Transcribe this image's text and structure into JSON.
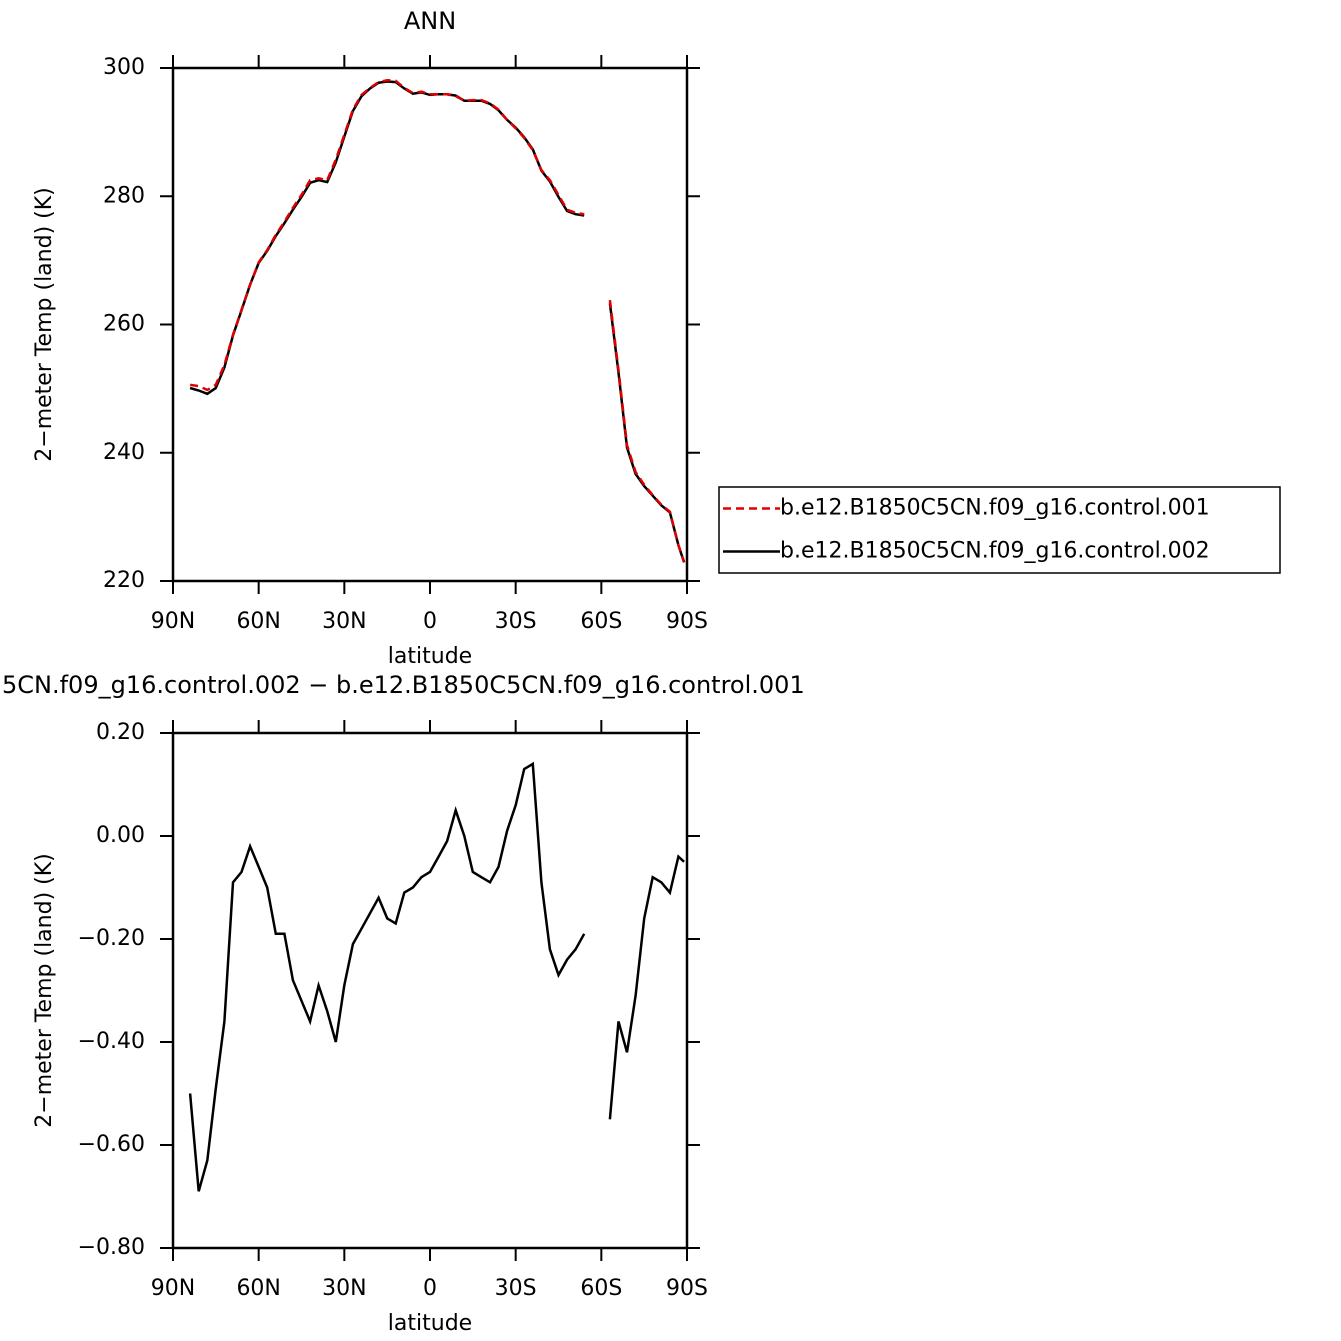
{
  "chart_data": [
    {
      "type": "line",
      "title": "ANN",
      "xlabel": "latitude",
      "ylabel": "2−meter Temp (land) (K)",
      "xlim": [
        90,
        -90
      ],
      "xticks": [
        {
          "value": 90,
          "label": "90N"
        },
        {
          "value": 60,
          "label": "60N"
        },
        {
          "value": 30,
          "label": "30N"
        },
        0,
        {
          "value": -30,
          "label": "30S"
        },
        {
          "value": -60,
          "label": "60S"
        },
        {
          "value": -90,
          "label": "90S"
        }
      ],
      "ylim": [
        220,
        300
      ],
      "yticks": [
        220,
        240,
        260,
        280,
        300
      ],
      "legend": "right",
      "x": [
        84,
        81,
        78,
        75,
        72,
        69,
        66,
        63,
        60,
        57,
        54,
        51,
        48,
        45,
        42,
        39,
        36,
        33,
        30,
        27,
        24,
        21,
        18,
        15,
        12,
        9,
        6,
        3,
        0,
        -3,
        -6,
        -9,
        -12,
        -15,
        -18,
        -21,
        -24,
        -27,
        -30,
        -33,
        -36,
        -39,
        -42,
        -45,
        -48,
        -51,
        -54,
        -57,
        -60,
        -63,
        -66,
        -69,
        -72,
        -75,
        -78,
        -81,
        -84,
        -87,
        -89
      ],
      "series": [
        {
          "name": "b.e12.B1850C5CN.f09_g16.control.001",
          "color": "#e00000",
          "linestyle": "dashed",
          "values": [
            250.6,
            250.4,
            249.8,
            250.6,
            253.7,
            258.4,
            262.3,
            266.2,
            269.7,
            271.6,
            274,
            276,
            278.2,
            280.2,
            282.5,
            282.8,
            282.5,
            285.7,
            289.6,
            293.5,
            295.8,
            296.9,
            297.8,
            298.1,
            298,
            296.9,
            296.1,
            296.3,
            295.9,
            295.9,
            295.9,
            295.6,
            294.9,
            295,
            295,
            294.5,
            293.5,
            291.9,
            290.6,
            289.1,
            287.2,
            284.1,
            282.5,
            280.2,
            277.9,
            277.4,
            277.2,
            null,
            null,
            263.8,
            252.9,
            241.2,
            237,
            235,
            233.4,
            231.9,
            230.8,
            225.6,
            223
          ]
        },
        {
          "name": "b.e12.B1850C5CN.f09_g16.control.002",
          "color": "#000000",
          "linestyle": "solid",
          "values": [
            250.1,
            249.7,
            249.2,
            250.1,
            253.3,
            258.3,
            262.2,
            266.2,
            269.6,
            271.5,
            273.8,
            275.8,
            277.9,
            279.9,
            282.1,
            282.5,
            282.2,
            285.3,
            289.3,
            293.3,
            295.6,
            296.8,
            297.7,
            297.9,
            297.8,
            296.8,
            296,
            296.2,
            295.8,
            295.9,
            295.9,
            295.7,
            294.9,
            294.9,
            294.9,
            294.4,
            293.4,
            291.9,
            290.7,
            289.2,
            287.3,
            284,
            282.3,
            279.9,
            277.7,
            277.2,
            277,
            null,
            null,
            263.3,
            252.5,
            240.8,
            236.7,
            234.8,
            233.3,
            231.8,
            230.7,
            225.6,
            222.9
          ]
        }
      ]
    },
    {
      "type": "line",
      "title": "5CN.f09_g16.control.002 − b.e12.B1850C5CN.f09_g16.control.001",
      "xlabel": "latitude",
      "ylabel": "2−meter Temp (land) (K)",
      "xlim": [
        90,
        -90
      ],
      "xticks": [
        {
          "value": 90,
          "label": "90N"
        },
        {
          "value": 60,
          "label": "60N"
        },
        {
          "value": 30,
          "label": "30N"
        },
        0,
        {
          "value": -30,
          "label": "30S"
        },
        {
          "value": -60,
          "label": "60S"
        },
        {
          "value": -90,
          "label": "90S"
        }
      ],
      "ylim": [
        -0.8,
        0.2
      ],
      "yticks": [
        {
          "value": -0.8,
          "label": "−0.80"
        },
        {
          "value": -0.6,
          "label": "−0.60"
        },
        {
          "value": -0.4,
          "label": "−0.40"
        },
        {
          "value": -0.2,
          "label": "−0.20"
        },
        {
          "value": 0,
          "label": "0.00"
        },
        {
          "value": 0.2,
          "label": "0.20"
        }
      ],
      "x": [
        84,
        81,
        78,
        75,
        72,
        69,
        66,
        63,
        60,
        57,
        54,
        51,
        48,
        45,
        42,
        39,
        36,
        33,
        30,
        27,
        24,
        21,
        18,
        15,
        12,
        9,
        6,
        3,
        0,
        -3,
        -6,
        -9,
        -12,
        -15,
        -18,
        -21,
        -24,
        -27,
        -30,
        -33,
        -36,
        -39,
        -42,
        -45,
        -48,
        -51,
        -54,
        -57,
        -60,
        -63,
        -66,
        -69,
        -72,
        -75,
        -78,
        -81,
        -84,
        -87,
        -89
      ],
      "series": [
        {
          "color": "#000000",
          "linestyle": "solid",
          "values": [
            -0.5,
            -0.69,
            -0.63,
            -0.49,
            -0.36,
            -0.09,
            -0.07,
            -0.02,
            -0.06,
            -0.1,
            -0.19,
            -0.19,
            -0.28,
            -0.32,
            -0.36,
            -0.29,
            -0.34,
            -0.4,
            -0.29,
            -0.21,
            -0.18,
            -0.15,
            -0.12,
            -0.16,
            -0.17,
            -0.11,
            -0.1,
            -0.08,
            -0.07,
            -0.04,
            -0.01,
            0.05,
            0,
            -0.07,
            -0.08,
            -0.09,
            -0.06,
            0.01,
            0.06,
            0.13,
            0.14,
            -0.09,
            -0.22,
            -0.27,
            -0.24,
            -0.22,
            -0.19,
            null,
            null,
            -0.55,
            -0.36,
            -0.42,
            -0.31,
            -0.16,
            -0.08,
            -0.09,
            -0.11,
            -0.04,
            -0.05
          ]
        }
      ]
    }
  ]
}
